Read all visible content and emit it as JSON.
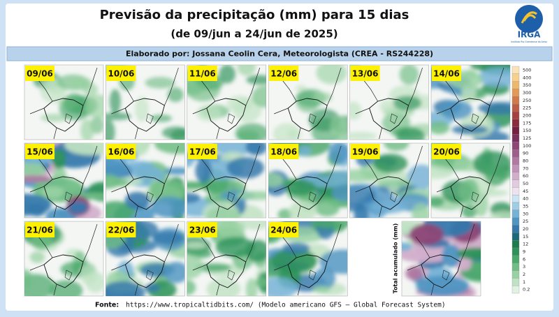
{
  "header": {
    "title": "Previsão da precipitação (mm) para 15 dias",
    "subtitle": "(de 09/jun a 24/jun de 2025)",
    "author": "Elaborado por: Jossana Ceolin Cera, Meteorologista (CREA - RS244228)"
  },
  "logo": {
    "name": "IRGA",
    "tagline": "Instituto Rio Grandense do Arroz"
  },
  "panels": [
    "09/06",
    "10/06",
    "11/06",
    "12/06",
    "13/06",
    "14/06",
    "15/06",
    "16/06",
    "17/06",
    "18/06",
    "19/06",
    "20/06",
    "21/06",
    "22/06",
    "23/06",
    "24/06"
  ],
  "total_label": "Total acumulado (mm)",
  "colorbar": {
    "levels": [
      500,
      400,
      350,
      300,
      250,
      225,
      200,
      175,
      150,
      125,
      100,
      90,
      80,
      70,
      60,
      50,
      45,
      40,
      35,
      30,
      25,
      20,
      15,
      12,
      9,
      6,
      3,
      2,
      1,
      0.2
    ],
    "colors": [
      "#fbe3b8",
      "#f6d08c",
      "#eeb86a",
      "#e29a56",
      "#d07a4a",
      "#bd5c46",
      "#a5423f",
      "#8a2c3c",
      "#74203f",
      "#7b2f5c",
      "#8d4676",
      "#9e5e8c",
      "#b078a2",
      "#c193b8",
      "#d2aecb",
      "#e2cbe0",
      "#eee2ee",
      "#c9e4f2",
      "#9fcde6",
      "#74b2d6",
      "#4f95c2",
      "#3579ac",
      "#1f6a78",
      "#1b7d4f",
      "#2d9259",
      "#4aa86c",
      "#70bd85",
      "#98d1a2",
      "#bfe2c2",
      "#e2f2e2"
    ]
  },
  "footer": {
    "label": "Fonte:",
    "text": "https://www.tropicaltidbits.com/ (Modelo americano GFS – Global Forecast System)"
  }
}
